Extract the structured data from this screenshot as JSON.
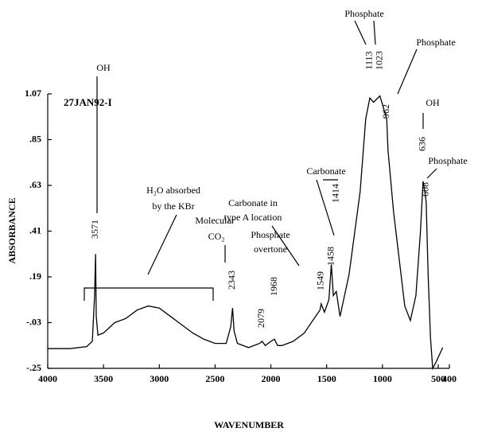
{
  "chart_data": {
    "type": "line",
    "x_label": "WAVENUMBER",
    "y_label": "ABSORBANCE",
    "annotations": [
      "27JAN92-I",
      "OH",
      "H₂O absorbed",
      "by the KBr",
      "Molecular",
      "CO₂",
      "Phosphate",
      "overtone",
      "Carbonate in",
      "type A location",
      "Carbonate",
      "Phosphate",
      "Phosphate",
      "OH",
      "Phosphate"
    ],
    "peak_labels": [
      3571,
      2343,
      2079,
      1968,
      1549,
      1458,
      1414,
      1113,
      1023,
      962,
      636,
      608
    ],
    "xlim": [
      4000,
      400
    ],
    "xticks": [
      4000,
      3500,
      3000,
      2500,
      2000,
      1500,
      1000,
      500,
      400
    ],
    "ylim": [
      -0.25,
      1.07
    ],
    "yticks": [
      1.07,
      {
        "value": 0.85,
        "label": ".85"
      },
      {
        "value": 0.63,
        "label": ".63"
      },
      {
        "value": 0.41,
        "label": ".41"
      },
      {
        "value": 0.19,
        "label": ".19"
      },
      {
        "value": -0.03,
        "label": "-.03"
      },
      {
        "value": -0.25,
        "label": "-.25"
      }
    ],
    "series": [
      {
        "color": "#000000",
        "x": [
          4000,
          3800,
          3650,
          3600,
          3580,
          3571,
          3565,
          3550,
          3500,
          3400,
          3300,
          3200,
          3100,
          3000,
          2900,
          2800,
          2700,
          2600,
          2500,
          2400,
          2360,
          2343,
          2330,
          2300,
          2200,
          2100,
          2079,
          2050,
          2000,
          1968,
          1940,
          1900,
          1800,
          1700,
          1600,
          1560,
          1549,
          1520,
          1480,
          1458,
          1440,
          1414,
          1380,
          1300,
          1200,
          1150,
          1113,
          1080,
          1023,
          1000,
          962,
          950,
          900,
          800,
          750,
          700,
          660,
          636,
          620,
          608,
          590,
          570,
          550,
          520,
          460
        ],
        "values": [
          -0.155,
          -0.155,
          -0.145,
          -0.12,
          0.1,
          0.3,
          0.0,
          -0.09,
          -0.08,
          -0.03,
          -0.01,
          0.03,
          0.05,
          0.04,
          0.0,
          -0.04,
          -0.08,
          -0.11,
          -0.13,
          -0.13,
          -0.05,
          0.04,
          -0.07,
          -0.13,
          -0.15,
          -0.13,
          -0.12,
          -0.14,
          -0.12,
          -0.11,
          -0.14,
          -0.14,
          -0.12,
          -0.08,
          0.0,
          0.03,
          0.06,
          0.02,
          0.08,
          0.25,
          0.1,
          0.12,
          0.0,
          0.2,
          0.6,
          0.95,
          1.05,
          1.03,
          1.06,
          1.02,
          0.95,
          0.8,
          0.5,
          0.05,
          -0.02,
          0.1,
          0.4,
          0.65,
          0.6,
          0.55,
          0.2,
          -0.1,
          -0.25,
          -0.22,
          -0.15
        ]
      }
    ]
  }
}
